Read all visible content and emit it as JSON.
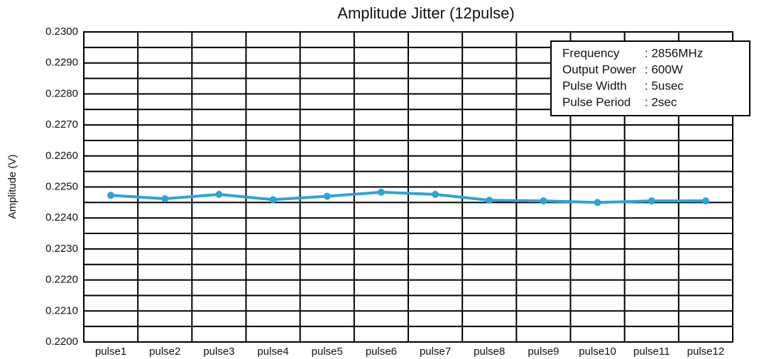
{
  "chart_data": {
    "type": "line",
    "title": "Amplitude Jitter (12pulse)",
    "y_label": "Amplitude (V)",
    "categories": [
      "pulse1",
      "pulse2",
      "pulse3",
      "pulse4",
      "pulse5",
      "pulse6",
      "pulse7",
      "pulse8",
      "pulse9",
      "pulse10",
      "pulse11",
      "pulse12"
    ],
    "series": [
      {
        "name": "Amplitude",
        "color": "#2ea3d8",
        "values": [
          0.22473,
          0.22462,
          0.22476,
          0.22459,
          0.2247,
          0.22483,
          0.22476,
          0.22457,
          0.22455,
          0.2245,
          0.22455,
          0.22455
        ]
      }
    ],
    "ylim": [
      0.22,
      0.23
    ],
    "yticks": [
      {
        "value": 0.22,
        "label": "0.2200"
      },
      {
        "value": 0.221,
        "label": "0.2210"
      },
      {
        "value": 0.222,
        "label": "0.2220"
      },
      {
        "value": 0.223,
        "label": "0.2230"
      },
      {
        "value": 0.224,
        "label": "0.2240"
      },
      {
        "value": 0.225,
        "label": "0.2250"
      },
      {
        "value": 0.226,
        "label": "0.2260"
      },
      {
        "value": 0.227,
        "label": "0.2270"
      },
      {
        "value": 0.228,
        "label": "0.2280"
      },
      {
        "value": 0.229,
        "label": "0.2290"
      },
      {
        "value": 0.23,
        "label": "0.2300"
      }
    ],
    "minor_yticks": [
      0.2205,
      0.2215,
      0.2225,
      0.2235,
      0.2245,
      0.2255,
      0.2265,
      0.2275,
      0.2285,
      0.2295
    ],
    "grid": true,
    "annotations": [
      [
        "Frequency",
        ": 2856MHz"
      ],
      [
        "Output Power",
        ": 600W"
      ],
      [
        "Pulse Width",
        ": 5usec"
      ],
      [
        "Pulse Period",
        ": 2sec"
      ]
    ]
  }
}
